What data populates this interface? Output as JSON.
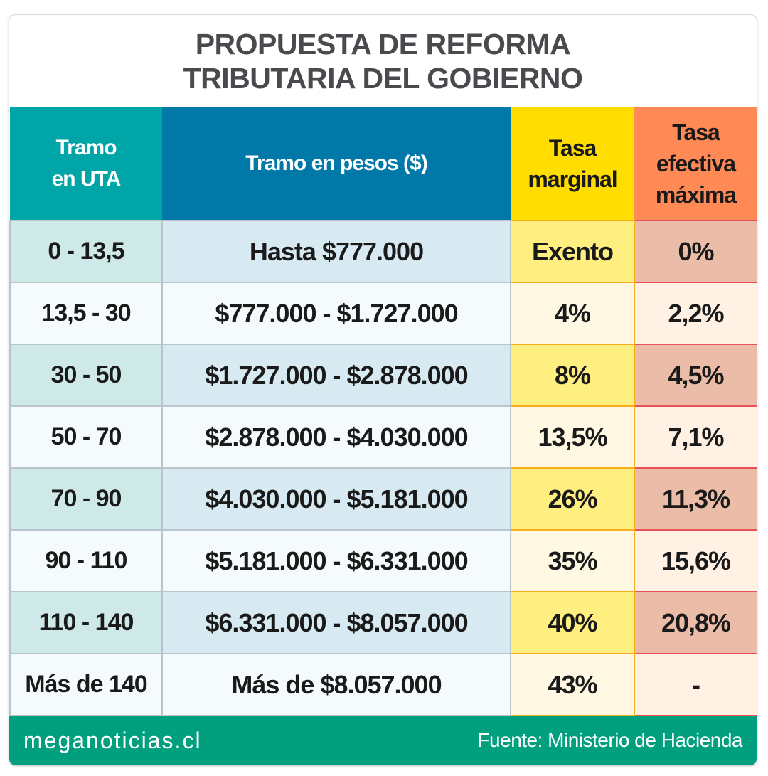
{
  "title": {
    "line1": "PROPUESTA DE REFORMA",
    "line2": "TRIBUTARIA DEL GOBIERNO"
  },
  "headers": {
    "tramo_uta": [
      "Tramo",
      "en UTA"
    ],
    "tramo_pesos": "Tramo en pesos ($)",
    "tasa_marginal": [
      "Tasa",
      "marginal"
    ],
    "tasa_efectiva": [
      "Tasa",
      "efectiva",
      "máxima"
    ]
  },
  "rows": [
    {
      "uta": "0 - 13,5",
      "pesos": "Hasta $777.000",
      "marginal": "Exento",
      "efectiva": "0%"
    },
    {
      "uta": "13,5 - 30",
      "pesos": "$777.000 - $1.727.000",
      "marginal": "4%",
      "efectiva": "2,2%"
    },
    {
      "uta": "30 - 50",
      "pesos": "$1.727.000 - $2.878.000",
      "marginal": "8%",
      "efectiva": "4,5%"
    },
    {
      "uta": "50 - 70",
      "pesos": "$2.878.000 - $4.030.000",
      "marginal": "13,5%",
      "efectiva": "7,1%"
    },
    {
      "uta": "70 - 90",
      "pesos": "$4.030.000 - $5.181.000",
      "marginal": "26%",
      "efectiva": "11,3%"
    },
    {
      "uta": "90 - 110",
      "pesos": "$5.181.000 - $6.331.000",
      "marginal": "35%",
      "efectiva": "15,6%"
    },
    {
      "uta": "110 -  140",
      "pesos": "$6.331.000 - $8.057.000",
      "marginal": "40%",
      "efectiva": "20,8%"
    },
    {
      "uta": "Más de 140",
      "pesos": "Más de $8.057.000",
      "marginal": "43%",
      "efectiva": "-"
    }
  ],
  "footer": {
    "brand": "meganoticias.cl",
    "source": "Fuente: Ministerio de Hacienda"
  }
}
